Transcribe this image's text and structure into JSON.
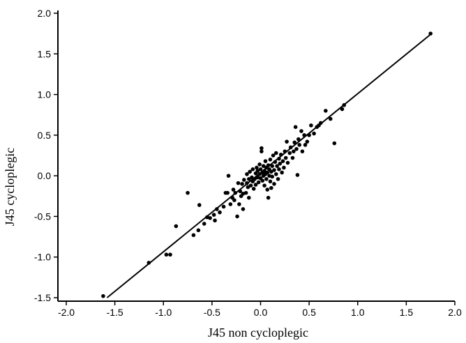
{
  "chart_data": {
    "type": "scatter",
    "title": "",
    "xlabel": "J45 non cycloplegic",
    "ylabel": "J45 cycloplegic",
    "xlim": [
      -2.0,
      2.0
    ],
    "ylim": [
      -1.5,
      2.0
    ],
    "xticks": [
      "-2.0",
      "-1.5",
      "-1.0",
      "-0.5",
      "0.0",
      "0.5",
      "1.0",
      "1.5",
      "2.0"
    ],
    "yticks": [
      "-1.5",
      "-1.0",
      "-0.5",
      "0.0",
      "0.5",
      "1.0",
      "1.5",
      "2.0"
    ],
    "grid": false,
    "legend": "none",
    "fit_line": {
      "x": [
        -1.58,
        1.74
      ],
      "y": [
        -1.5,
        1.73
      ]
    },
    "points": [
      [
        1.75,
        1.75
      ],
      [
        -1.62,
        -1.48
      ],
      [
        -1.15,
        -1.07
      ],
      [
        -0.97,
        -0.97
      ],
      [
        -0.93,
        -0.97
      ],
      [
        -0.87,
        -0.62
      ],
      [
        -0.75,
        -0.21
      ],
      [
        -0.69,
        -0.73
      ],
      [
        -0.64,
        -0.67
      ],
      [
        -0.63,
        -0.36
      ],
      [
        -0.58,
        -0.59
      ],
      [
        -0.55,
        -0.51
      ],
      [
        -0.52,
        -0.52
      ],
      [
        -0.48,
        -0.48
      ],
      [
        -0.47,
        -0.55
      ],
      [
        -0.45,
        -0.41
      ],
      [
        -0.42,
        -0.45
      ],
      [
        -0.38,
        -0.38
      ],
      [
        -0.36,
        -0.21
      ],
      [
        -0.34,
        -0.21
      ],
      [
        -0.33,
        0.0
      ],
      [
        -0.31,
        -0.35
      ],
      [
        -0.29,
        -0.27
      ],
      [
        -0.28,
        -0.17
      ],
      [
        -0.27,
        -0.3
      ],
      [
        -0.26,
        -0.21
      ],
      [
        -0.24,
        -0.5
      ],
      [
        -0.23,
        -0.09
      ],
      [
        -0.22,
        -0.35
      ],
      [
        -0.21,
        -0.19
      ],
      [
        -0.2,
        -0.25
      ],
      [
        -0.19,
        -0.1
      ],
      [
        -0.18,
        -0.22
      ],
      [
        -0.18,
        -0.41
      ],
      [
        -0.17,
        -0.05
      ],
      [
        -0.15,
        -0.21
      ],
      [
        -0.14,
        -0.09
      ],
      [
        -0.14,
        0.02
      ],
      [
        -0.13,
        -0.14
      ],
      [
        -0.12,
        -0.27
      ],
      [
        -0.12,
        -0.04
      ],
      [
        -0.11,
        0.05
      ],
      [
        -0.1,
        -0.12
      ],
      [
        -0.09,
        -0.02
      ],
      [
        -0.08,
        -0.07
      ],
      [
        -0.08,
        0.08
      ],
      [
        -0.07,
        -0.16
      ],
      [
        -0.06,
        -0.04
      ],
      [
        -0.05,
        0.03
      ],
      [
        -0.05,
        -0.11
      ],
      [
        -0.04,
        0.1
      ],
      [
        -0.03,
        -0.02
      ],
      [
        -0.03,
        0.06
      ],
      [
        -0.02,
        -0.08
      ],
      [
        -0.01,
        0.02
      ],
      [
        -0.01,
        0.14
      ],
      [
        0.0,
        -0.03
      ],
      [
        0.0,
        0.08
      ],
      [
        0.01,
        0.34
      ],
      [
        0.01,
        0.3
      ],
      [
        0.02,
        -0.06
      ],
      [
        0.02,
        0.04
      ],
      [
        0.03,
        0.0
      ],
      [
        0.03,
        0.12
      ],
      [
        0.04,
        -0.12
      ],
      [
        0.04,
        0.06
      ],
      [
        0.05,
        0.02
      ],
      [
        0.05,
        0.18
      ],
      [
        0.06,
        -0.04
      ],
      [
        0.06,
        0.1
      ],
      [
        0.07,
        -0.17
      ],
      [
        0.07,
        0.04
      ],
      [
        0.08,
        -0.27
      ],
      [
        0.08,
        0.13
      ],
      [
        0.09,
        0.0
      ],
      [
        0.09,
        0.08
      ],
      [
        0.1,
        -0.07
      ],
      [
        0.1,
        0.2
      ],
      [
        0.11,
        0.05
      ],
      [
        0.11,
        -0.15
      ],
      [
        0.12,
        0.12
      ],
      [
        0.12,
        -0.01
      ],
      [
        0.13,
        0.25
      ],
      [
        0.14,
        0.07
      ],
      [
        0.14,
        -0.1
      ],
      [
        0.15,
        0.17
      ],
      [
        0.16,
        0.02
      ],
      [
        0.16,
        0.28
      ],
      [
        0.17,
        0.12
      ],
      [
        0.18,
        -0.04
      ],
      [
        0.19,
        0.21
      ],
      [
        0.19,
        0.08
      ],
      [
        0.2,
        0.15
      ],
      [
        0.21,
        0.26
      ],
      [
        0.22,
        0.04
      ],
      [
        0.23,
        0.18
      ],
      [
        0.24,
        0.1
      ],
      [
        0.25,
        0.3
      ],
      [
        0.26,
        0.22
      ],
      [
        0.27,
        0.42
      ],
      [
        0.28,
        0.16
      ],
      [
        0.3,
        0.28
      ],
      [
        0.31,
        0.35
      ],
      [
        0.33,
        0.22
      ],
      [
        0.34,
        0.3
      ],
      [
        0.35,
        0.41
      ],
      [
        0.36,
        0.6
      ],
      [
        0.37,
        0.33
      ],
      [
        0.38,
        0.01
      ],
      [
        0.39,
        0.45
      ],
      [
        0.4,
        0.38
      ],
      [
        0.42,
        0.55
      ],
      [
        0.43,
        0.3
      ],
      [
        0.45,
        0.5
      ],
      [
        0.46,
        0.38
      ],
      [
        0.48,
        0.42
      ],
      [
        0.5,
        0.5
      ],
      [
        0.52,
        0.62
      ],
      [
        0.55,
        0.52
      ],
      [
        0.58,
        0.6
      ],
      [
        0.6,
        0.62
      ],
      [
        0.62,
        0.65
      ],
      [
        0.67,
        0.8
      ],
      [
        0.72,
        0.7
      ],
      [
        0.76,
        0.4
      ],
      [
        0.84,
        0.82
      ],
      [
        0.86,
        0.87
      ]
    ]
  }
}
